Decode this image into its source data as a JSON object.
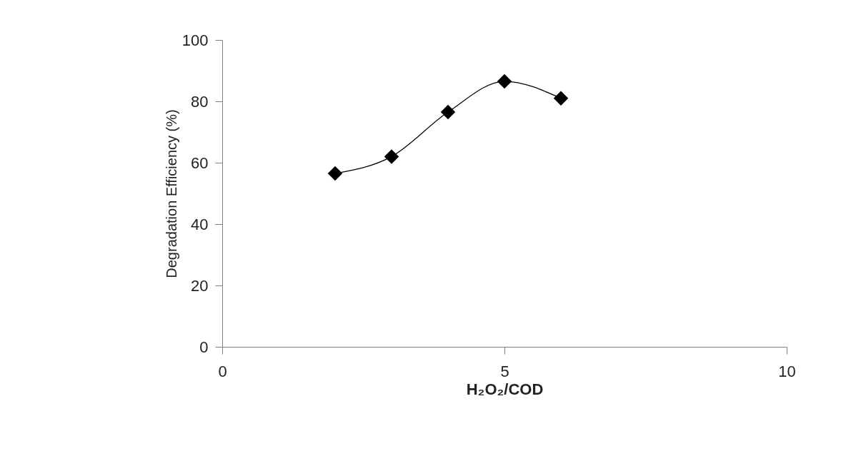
{
  "chart_data": {
    "type": "line",
    "xlabel": "H₂O₂/COD",
    "ylabel": "Degradation Efficiency (%)",
    "x": [
      2,
      3,
      4,
      5,
      6
    ],
    "series": [
      {
        "color": "#000000",
        "values": [
          56.5,
          62,
          76.5,
          86.5,
          81
        ]
      }
    ],
    "marker": "diamond",
    "line_style": "solid",
    "xlim": [
      0,
      10
    ],
    "xticks": [
      0,
      5,
      10
    ],
    "ylim": [
      0,
      100
    ],
    "yticks": [
      0,
      20,
      40,
      60,
      80,
      100
    ],
    "grid": false,
    "legend": false
  }
}
